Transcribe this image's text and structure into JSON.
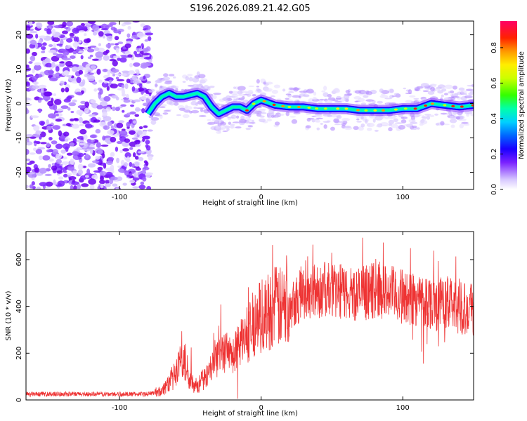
{
  "title": "S196.2026.089.21.42.G05",
  "chart_data": [
    {
      "type": "heatmap",
      "name": "spectrogram",
      "xlabel": "Height of straight line (km)",
      "ylabel": "Frequency (Hz)",
      "xlim": [
        -166,
        150
      ],
      "ylim": [
        -25,
        24
      ],
      "xticks": [
        -100,
        0,
        100
      ],
      "yticks": [
        -20,
        -10,
        0,
        10,
        20
      ],
      "colorbar": {
        "label": "Normalized spectral amplitude",
        "range": [
          0,
          0.95
        ],
        "ticks": [
          0.0,
          0.2,
          0.4,
          0.6,
          0.8
        ]
      },
      "ridge": {
        "x": [
          -80,
          -75,
          -70,
          -65,
          -60,
          -55,
          -50,
          -45,
          -40,
          -35,
          -30,
          -25,
          -20,
          -15,
          -10,
          -5,
          0,
          10,
          20,
          30,
          40,
          50,
          60,
          70,
          80,
          90,
          100,
          110,
          120,
          130,
          140,
          150
        ],
        "y": [
          -3,
          0,
          2,
          3,
          2,
          2,
          2.5,
          3,
          2,
          -1,
          -3,
          -2,
          -1,
          -1,
          -2,
          0,
          1,
          -0.5,
          -1,
          -1,
          -1.5,
          -1.5,
          -1.5,
          -2,
          -2,
          -2,
          -1.5,
          -1.5,
          0,
          -0.5,
          -1,
          -0.5
        ]
      },
      "noise_region_x": [
        -166,
        -78
      ]
    },
    {
      "type": "line",
      "name": "snr",
      "xlabel": "Height of straight line (km)",
      "ylabel": "SNR (10 * v/v)",
      "xlim": [
        -166,
        150
      ],
      "ylim": [
        0,
        720
      ],
      "xticks": [
        -100,
        0,
        100
      ],
      "yticks": [
        0,
        200,
        400,
        600
      ],
      "color": "#ee3333",
      "envelope": {
        "x": [
          -166,
          -80,
          -70,
          -60,
          -55,
          -50,
          -45,
          -40,
          -35,
          -30,
          -25,
          -20,
          -15,
          -10,
          -5,
          0,
          5,
          10,
          15,
          20,
          25,
          30,
          40,
          50,
          60,
          70,
          80,
          90,
          100,
          110,
          120,
          130,
          140,
          150
        ],
        "y": [
          25,
          25,
          40,
          110,
          180,
          90,
          60,
          90,
          140,
          180,
          200,
          190,
          240,
          280,
          330,
          360,
          380,
          400,
          390,
          420,
          440,
          460,
          470,
          470,
          460,
          450,
          470,
          460,
          440,
          430,
          420,
          410,
          400,
          390
        ]
      }
    }
  ]
}
